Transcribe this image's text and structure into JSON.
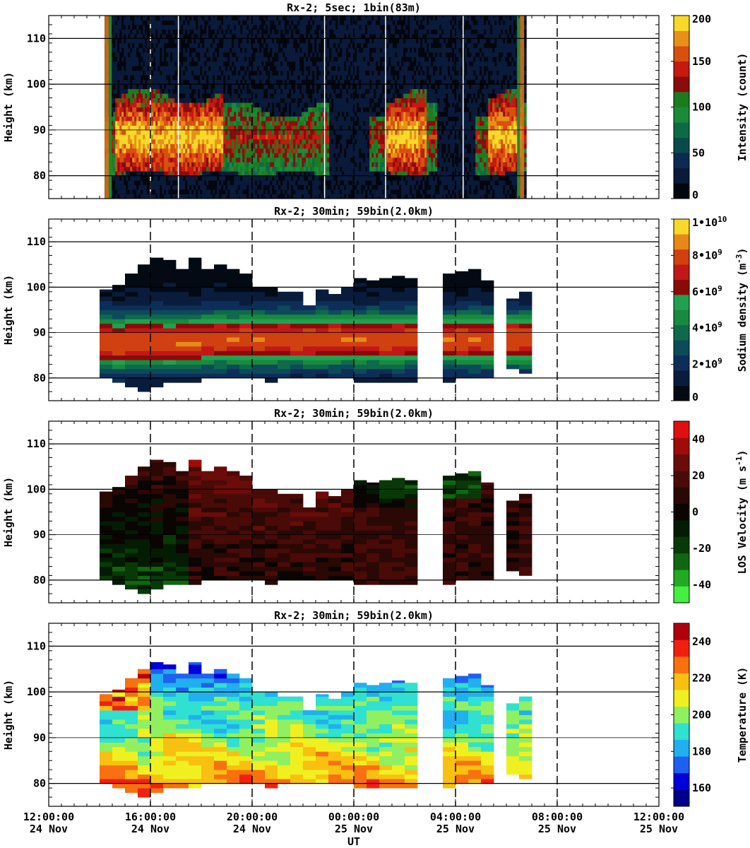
{
  "figure": {
    "xlabel": "UT"
  },
  "colors": {
    "intensity_scale": [
      "#02060e",
      "#0a1a3a",
      "#0d2a52",
      "#0b4a4a",
      "#0e6a45",
      "#1a8a3a",
      "#1e7a1e",
      "#8a0c0c",
      "#c41a10",
      "#d85010",
      "#e89018",
      "#f8d828"
    ],
    "density_scale": [
      "#030a14",
      "#0a1c3c",
      "#0e2e5a",
      "#0d4a5a",
      "#0e6a4a",
      "#188a40",
      "#22a050",
      "#8a0a0a",
      "#c01818",
      "#d04010",
      "#e88818",
      "#f8d828"
    ],
    "velocity_scale": [
      "#44ee44",
      "#22aa22",
      "#116611",
      "#083a08",
      "#041c04",
      "#0a0503",
      "#2a0805",
      "#4a0a08",
      "#6a0c0a",
      "#a00c0a",
      "#e01010"
    ],
    "temperature_scale": [
      "#00008b",
      "#0000d8",
      "#2060f0",
      "#20b0f0",
      "#30e0d0",
      "#90f060",
      "#f0f020",
      "#f8c010",
      "#f87010",
      "#f02010",
      "#b00010"
    ]
  },
  "chart_data": [
    {
      "id": "intensity",
      "type": "heatmap",
      "title": "Rx-2;  5sec; 1bin(83m)",
      "ylabel": "Height (km)",
      "ylim": [
        75,
        115
      ],
      "yticks": [
        80,
        90,
        100,
        110
      ],
      "xlim_hours": [
        12,
        36
      ],
      "xticks": [
        12,
        16,
        20,
        24,
        28,
        32,
        36
      ],
      "xtick_labels": [
        [
          "12:00:00",
          "24 Nov"
        ],
        [
          "16:00:00",
          "24 Nov"
        ],
        [
          "20:00:00",
          "24 Nov"
        ],
        [
          "00:00:00",
          "25 Nov"
        ],
        [
          "04:00:00",
          "25 Nov"
        ],
        [
          "08:00:00",
          "25 Nov"
        ],
        [
          "12:00:00",
          "25 Nov"
        ]
      ],
      "colorbar": {
        "label": "Intensity (count)",
        "range": [
          0,
          200
        ],
        "ticks": [
          "0",
          "50",
          "100",
          "150",
          "200"
        ],
        "tick_values": [
          0,
          50,
          100,
          150,
          200
        ]
      },
      "data_coverage_hours": [
        14.2,
        30.7
      ],
      "layer_height_km": [
        80,
        97
      ],
      "peak_height_km": 88,
      "bright_intervals_hours": [
        [
          14.6,
          18.8
        ],
        [
          25.2,
          26.8
        ],
        [
          29.2,
          30.6
        ]
      ],
      "dark_gaps_hours": [
        [
          23.0,
          24.6
        ],
        [
          27.2,
          28.7
        ]
      ]
    },
    {
      "id": "density",
      "type": "heatmap",
      "title": "Rx-2; 30min; 59bin(2.0km)",
      "ylabel": "Height (km)",
      "ylim": [
        75,
        115
      ],
      "yticks": [
        80,
        90,
        100,
        110
      ],
      "xlim_hours": [
        12,
        36
      ],
      "xticks": [
        12,
        16,
        20,
        24,
        28,
        32,
        36
      ],
      "colorbar": {
        "label": "Sodium density (m^-3)",
        "range": [
          0,
          10000000000.0
        ],
        "ticks": [
          "0",
          "2•10^9",
          "4•10^9",
          "6•10^9",
          "8•10^9",
          "1•10^10"
        ],
        "tick_values": [
          0,
          2000000000.0,
          4000000000.0,
          6000000000.0,
          8000000000.0,
          10000000000.0
        ]
      },
      "columns": [
        {
          "t": 14.25,
          "bottom": 80.5,
          "top": 99.5,
          "peak": 88.0
        },
        {
          "t": 14.75,
          "bottom": 79.0,
          "top": 100.5,
          "peak": 87.5
        },
        {
          "t": 15.25,
          "bottom": 78.0,
          "top": 103.0,
          "peak": 88.0
        },
        {
          "t": 15.75,
          "bottom": 77.5,
          "top": 105.0,
          "peak": 88.0
        },
        {
          "t": 16.25,
          "bottom": 78.5,
          "top": 106.5,
          "peak": 88.0
        },
        {
          "t": 16.75,
          "bottom": 79.0,
          "top": 106.0,
          "peak": 88.0
        },
        {
          "t": 17.25,
          "bottom": 79.5,
          "top": 104.0,
          "peak": 88.0
        },
        {
          "t": 17.75,
          "bottom": 79.5,
          "top": 106.5,
          "peak": 88.0
        },
        {
          "t": 18.25,
          "bottom": 80.0,
          "top": 104.0,
          "peak": 88.5
        },
        {
          "t": 18.75,
          "bottom": 80.0,
          "top": 105.0,
          "peak": 88.5
        },
        {
          "t": 19.25,
          "bottom": 80.0,
          "top": 104.0,
          "peak": 88.5
        },
        {
          "t": 19.75,
          "bottom": 80.0,
          "top": 103.0,
          "peak": 88.5
        },
        {
          "t": 20.25,
          "bottom": 80.5,
          "top": 100.0,
          "peak": 88.5
        },
        {
          "t": 20.75,
          "bottom": 79.5,
          "top": 100.0,
          "peak": 88.5
        },
        {
          "t": 21.25,
          "bottom": 80.5,
          "top": 99.0,
          "peak": 88.5
        },
        {
          "t": 21.75,
          "bottom": 80.5,
          "top": 99.0,
          "peak": 88.5
        },
        {
          "t": 22.25,
          "bottom": 80.5,
          "top": 96.0,
          "peak": 88.5
        },
        {
          "t": 22.75,
          "bottom": 80.5,
          "top": 99.5,
          "peak": 88.5
        },
        {
          "t": 23.25,
          "bottom": 80.5,
          "top": 98.5,
          "peak": 88.5
        },
        {
          "t": 23.75,
          "bottom": 80.5,
          "top": 100.0,
          "peak": 88.5
        },
        {
          "t": 24.25,
          "bottom": 79.0,
          "top": 102.0,
          "peak": 88.5
        },
        {
          "t": 24.75,
          "bottom": 79.0,
          "top": 101.5,
          "peak": 88.5
        },
        {
          "t": 25.25,
          "bottom": 79.0,
          "top": 102.0,
          "peak": 88.5
        },
        {
          "t": 25.75,
          "bottom": 79.5,
          "top": 102.5,
          "peak": 88.5
        },
        {
          "t": 26.25,
          "bottom": 79.5,
          "top": 102.0,
          "peak": 88.5
        },
        {
          "t": 27.75,
          "bottom": 79.5,
          "top": 103.0,
          "peak": 88.5
        },
        {
          "t": 28.25,
          "bottom": 80.0,
          "top": 103.5,
          "peak": 88.5
        },
        {
          "t": 28.75,
          "bottom": 80.0,
          "top": 104.0,
          "peak": 88.5
        },
        {
          "t": 29.25,
          "bottom": 80.5,
          "top": 101.5,
          "peak": 88.5
        },
        {
          "t": 30.25,
          "bottom": 82.0,
          "top": 97.5,
          "peak": 88.5
        },
        {
          "t": 30.75,
          "bottom": 81.0,
          "top": 99.0,
          "peak": 88.5
        }
      ]
    },
    {
      "id": "velocity",
      "type": "heatmap",
      "title": "Rx-2; 30min; 59bin(2.0km)",
      "ylabel": "Height (km)",
      "ylim": [
        75,
        115
      ],
      "yticks": [
        80,
        90,
        100,
        110
      ],
      "xlim_hours": [
        12,
        36
      ],
      "xticks": [
        12,
        16,
        20,
        24,
        28,
        32,
        36
      ],
      "colorbar": {
        "label": "LOS Velocity (m s^-1)",
        "range": [
          -50,
          50
        ],
        "ticks": [
          "-40",
          "-20",
          "0",
          "20",
          "40"
        ],
        "tick_values": [
          -40,
          -20,
          0,
          20,
          40
        ]
      },
      "same_columns_as": "density"
    },
    {
      "id": "temperature",
      "type": "heatmap",
      "title": "Rx-2; 30min; 59bin(2.0km)",
      "ylabel": "Height (km)",
      "ylim": [
        75,
        115
      ],
      "yticks": [
        80,
        90,
        100,
        110
      ],
      "xlim_hours": [
        12,
        36
      ],
      "xticks": [
        12,
        16,
        20,
        24,
        28,
        32,
        36
      ],
      "colorbar": {
        "label": "Temperature (K)",
        "range": [
          150,
          250
        ],
        "ticks": [
          "160",
          "180",
          "200",
          "220",
          "240"
        ],
        "tick_values": [
          160,
          180,
          200,
          220,
          240
        ]
      },
      "same_columns_as": "density"
    }
  ]
}
